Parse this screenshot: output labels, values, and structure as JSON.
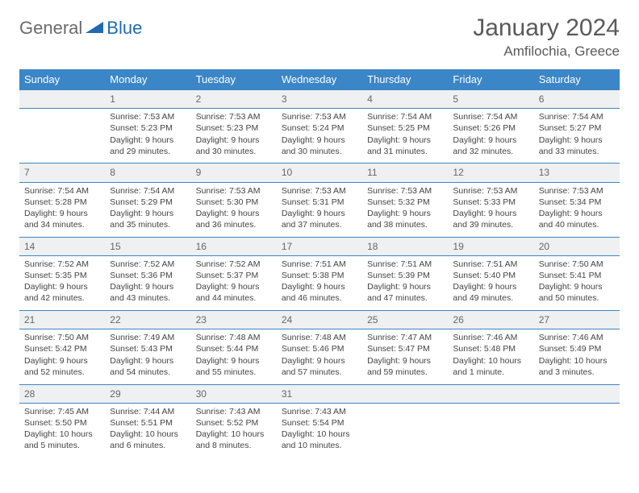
{
  "colors": {
    "header_bg": "#3b86c6",
    "header_text": "#ffffff",
    "grid_line": "#3b86c6",
    "daynum_bg": "#eef0f1",
    "text": "#444444",
    "title": "#5a5a5a",
    "logo_gray": "#6b6b6b",
    "logo_blue": "#1e6cb0"
  },
  "logo": {
    "text_gray": "General",
    "text_blue": "Blue"
  },
  "title": "January 2024",
  "location": "Amfilochia, Greece",
  "weekdays": [
    "Sunday",
    "Monday",
    "Tuesday",
    "Wednesday",
    "Thursday",
    "Friday",
    "Saturday"
  ],
  "weeks": [
    {
      "nums": [
        "",
        "1",
        "2",
        "3",
        "4",
        "5",
        "6"
      ],
      "cells": [
        "",
        "Sunrise: 7:53 AM\nSunset: 5:23 PM\nDaylight: 9 hours and 29 minutes.",
        "Sunrise: 7:53 AM\nSunset: 5:23 PM\nDaylight: 9 hours and 30 minutes.",
        "Sunrise: 7:53 AM\nSunset: 5:24 PM\nDaylight: 9 hours and 30 minutes.",
        "Sunrise: 7:54 AM\nSunset: 5:25 PM\nDaylight: 9 hours and 31 minutes.",
        "Sunrise: 7:54 AM\nSunset: 5:26 PM\nDaylight: 9 hours and 32 minutes.",
        "Sunrise: 7:54 AM\nSunset: 5:27 PM\nDaylight: 9 hours and 33 minutes."
      ]
    },
    {
      "nums": [
        "7",
        "8",
        "9",
        "10",
        "11",
        "12",
        "13"
      ],
      "cells": [
        "Sunrise: 7:54 AM\nSunset: 5:28 PM\nDaylight: 9 hours and 34 minutes.",
        "Sunrise: 7:54 AM\nSunset: 5:29 PM\nDaylight: 9 hours and 35 minutes.",
        "Sunrise: 7:53 AM\nSunset: 5:30 PM\nDaylight: 9 hours and 36 minutes.",
        "Sunrise: 7:53 AM\nSunset: 5:31 PM\nDaylight: 9 hours and 37 minutes.",
        "Sunrise: 7:53 AM\nSunset: 5:32 PM\nDaylight: 9 hours and 38 minutes.",
        "Sunrise: 7:53 AM\nSunset: 5:33 PM\nDaylight: 9 hours and 39 minutes.",
        "Sunrise: 7:53 AM\nSunset: 5:34 PM\nDaylight: 9 hours and 40 minutes."
      ]
    },
    {
      "nums": [
        "14",
        "15",
        "16",
        "17",
        "18",
        "19",
        "20"
      ],
      "cells": [
        "Sunrise: 7:52 AM\nSunset: 5:35 PM\nDaylight: 9 hours and 42 minutes.",
        "Sunrise: 7:52 AM\nSunset: 5:36 PM\nDaylight: 9 hours and 43 minutes.",
        "Sunrise: 7:52 AM\nSunset: 5:37 PM\nDaylight: 9 hours and 44 minutes.",
        "Sunrise: 7:51 AM\nSunset: 5:38 PM\nDaylight: 9 hours and 46 minutes.",
        "Sunrise: 7:51 AM\nSunset: 5:39 PM\nDaylight: 9 hours and 47 minutes.",
        "Sunrise: 7:51 AM\nSunset: 5:40 PM\nDaylight: 9 hours and 49 minutes.",
        "Sunrise: 7:50 AM\nSunset: 5:41 PM\nDaylight: 9 hours and 50 minutes."
      ]
    },
    {
      "nums": [
        "21",
        "22",
        "23",
        "24",
        "25",
        "26",
        "27"
      ],
      "cells": [
        "Sunrise: 7:50 AM\nSunset: 5:42 PM\nDaylight: 9 hours and 52 minutes.",
        "Sunrise: 7:49 AM\nSunset: 5:43 PM\nDaylight: 9 hours and 54 minutes.",
        "Sunrise: 7:48 AM\nSunset: 5:44 PM\nDaylight: 9 hours and 55 minutes.",
        "Sunrise: 7:48 AM\nSunset: 5:46 PM\nDaylight: 9 hours and 57 minutes.",
        "Sunrise: 7:47 AM\nSunset: 5:47 PM\nDaylight: 9 hours and 59 minutes.",
        "Sunrise: 7:46 AM\nSunset: 5:48 PM\nDaylight: 10 hours and 1 minute.",
        "Sunrise: 7:46 AM\nSunset: 5:49 PM\nDaylight: 10 hours and 3 minutes."
      ]
    },
    {
      "nums": [
        "28",
        "29",
        "30",
        "31",
        "",
        "",
        ""
      ],
      "cells": [
        "Sunrise: 7:45 AM\nSunset: 5:50 PM\nDaylight: 10 hours and 5 minutes.",
        "Sunrise: 7:44 AM\nSunset: 5:51 PM\nDaylight: 10 hours and 6 minutes.",
        "Sunrise: 7:43 AM\nSunset: 5:52 PM\nDaylight: 10 hours and 8 minutes.",
        "Sunrise: 7:43 AM\nSunset: 5:54 PM\nDaylight: 10 hours and 10 minutes.",
        "",
        "",
        ""
      ]
    }
  ]
}
